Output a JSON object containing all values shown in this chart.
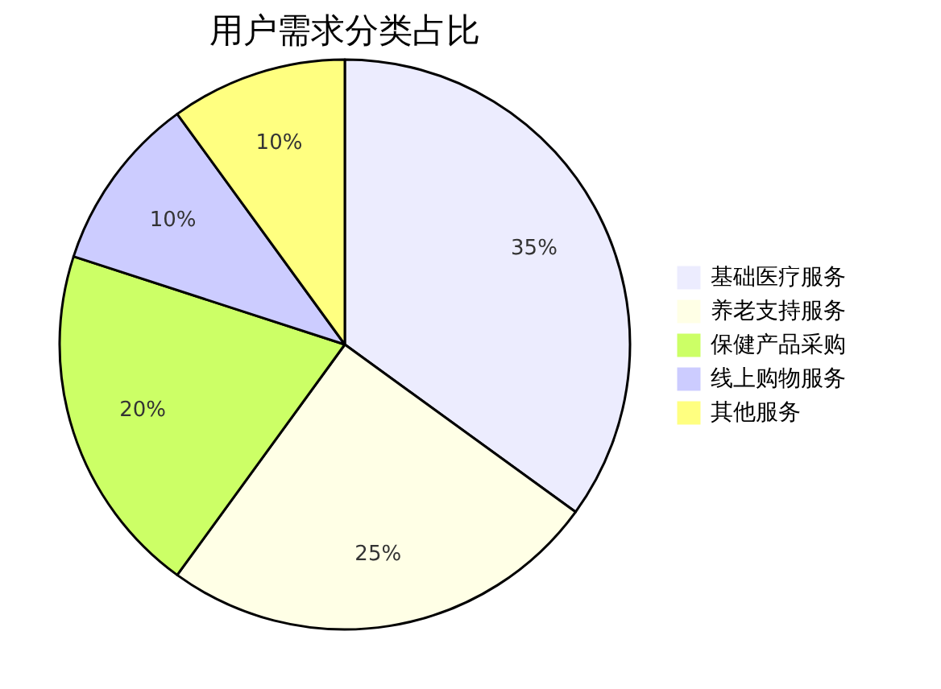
{
  "chart_data": {
    "type": "pie",
    "title": "用户需求分类占比",
    "categories": [
      "基础医疗服务",
      "养老支持服务",
      "保健产品采购",
      "线上购物服务",
      "其他服务"
    ],
    "values": [
      35,
      25,
      20,
      10,
      10
    ],
    "value_labels": [
      "35%",
      "25%",
      "20%",
      "10%",
      "10%"
    ],
    "colors": [
      "#ececfe",
      "#ffffe6",
      "#ccff66",
      "#ccccff",
      "#ffff80"
    ],
    "legend": "right"
  }
}
